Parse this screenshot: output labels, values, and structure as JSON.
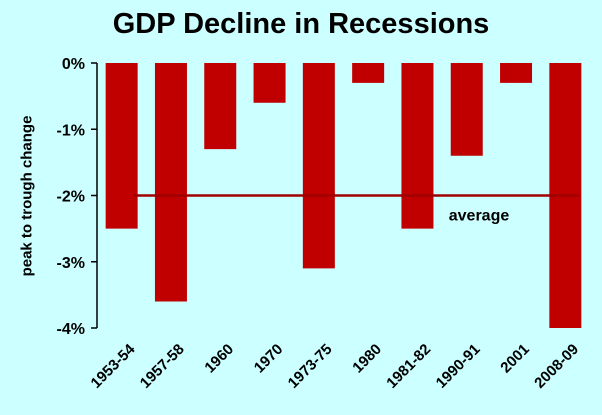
{
  "chart_data": {
    "type": "bar",
    "title": "GDP Decline in Recessions",
    "xlabel": "",
    "ylabel": "peak to trough change",
    "categories": [
      "1953-54",
      "1957-58",
      "1960",
      "1970",
      "1973-75",
      "1980",
      "1981-82",
      "1990-91",
      "2001",
      "2008-09"
    ],
    "values": [
      -2.5,
      -3.6,
      -1.3,
      -0.6,
      -3.1,
      -0.3,
      -2.5,
      -1.4,
      -0.3,
      -4.0
    ],
    "ylim": [
      -4,
      0
    ],
    "yticks": [
      0,
      -1,
      -2,
      -3,
      -4
    ],
    "ytick_labels": [
      "0%",
      "-1%",
      "-2%",
      "-3%",
      "-4%"
    ],
    "reference_line": {
      "value": -2,
      "label": "average"
    },
    "grid": false,
    "legend": "none",
    "colors": {
      "bar": "#c00000",
      "reference_line": "#a00000",
      "background": "#ccffff"
    }
  }
}
